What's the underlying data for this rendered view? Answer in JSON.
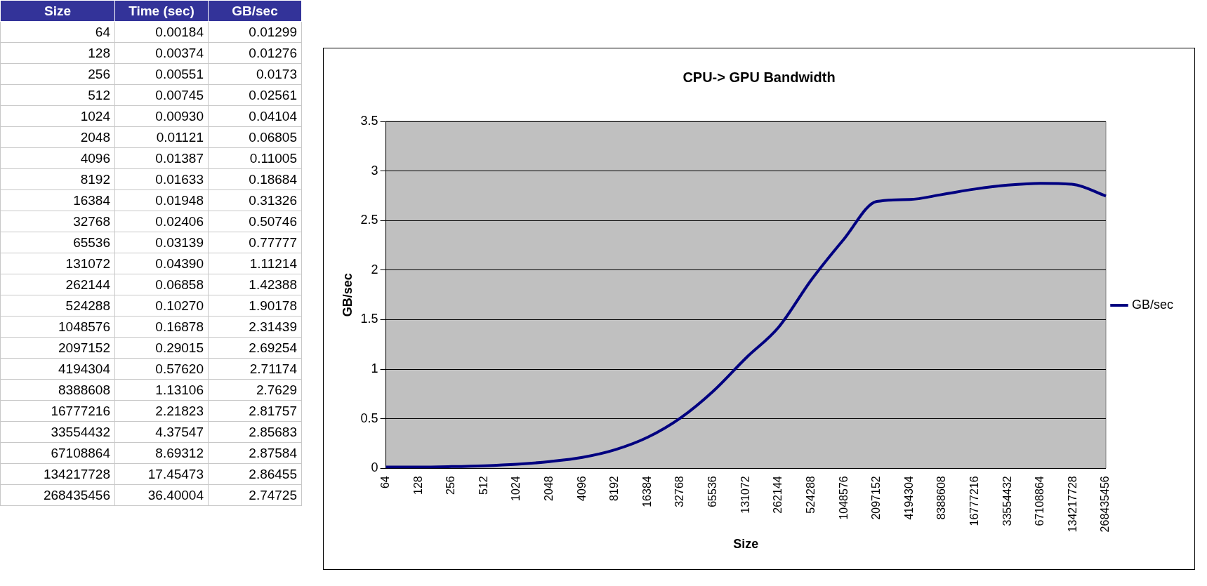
{
  "chart_data": [
    {
      "type": "other",
      "xlabel": "Size",
      "categories": [
        "64",
        "128",
        "256",
        "512",
        "1024",
        "2048",
        "4096",
        "8192",
        "16384",
        "32768",
        "65536",
        "131072",
        "262144",
        "524288",
        "1048576",
        "2097152",
        "4194304",
        "8388608",
        "16777216",
        "33554432",
        "67108864",
        "134217728",
        "268435456"
      ],
      "series": [
        {
          "name": "Time (sec)",
          "values": [
            0.00184,
            0.00374,
            0.00551,
            0.00745,
            0.0093,
            0.01121,
            0.01387,
            0.01633,
            0.01948,
            0.02406,
            0.03139,
            0.0439,
            0.06858,
            0.1027,
            0.16878,
            0.29015,
            0.5762,
            1.13106,
            2.21823,
            4.37547,
            8.69312,
            17.45473,
            36.40004
          ],
          "value_labels": [
            "0.00184",
            "0.00374",
            "0.00551",
            "0.00745",
            "0.00930",
            "0.01121",
            "0.01387",
            "0.01633",
            "0.01948",
            "0.02406",
            "0.03139",
            "0.04390",
            "0.06858",
            "0.10270",
            "0.16878",
            "0.29015",
            "0.57620",
            "1.13106",
            "2.21823",
            "4.37547",
            "8.69312",
            "17.45473",
            "36.40004"
          ]
        },
        {
          "name": "GB/sec",
          "values": [
            0.01299,
            0.01276,
            0.0173,
            0.02561,
            0.04104,
            0.06805,
            0.11005,
            0.18684,
            0.31326,
            0.50746,
            0.77777,
            1.11214,
            1.42388,
            1.90178,
            2.31439,
            2.69254,
            2.71174,
            2.7629,
            2.81757,
            2.85683,
            2.87584,
            2.86455,
            2.74725
          ],
          "value_labels": [
            "0.01299",
            "0.01276",
            "0.0173",
            "0.02561",
            "0.04104",
            "0.06805",
            "0.11005",
            "0.18684",
            "0.31326",
            "0.50746",
            "0.77777",
            "1.11214",
            "1.42388",
            "1.90178",
            "2.31439",
            "2.69254",
            "2.71174",
            "2.7629",
            "2.81757",
            "2.85683",
            "2.87584",
            "2.86455",
            "2.74725"
          ]
        }
      ]
    },
    {
      "type": "line",
      "title": "CPU-> GPU Bandwidth",
      "xlabel": "Size",
      "ylabel": "GB/sec",
      "categories": [
        "64",
        "128",
        "256",
        "512",
        "1024",
        "2048",
        "4096",
        "8192",
        "16384",
        "32768",
        "65536",
        "131072",
        "262144",
        "524288",
        "1048576",
        "2097152",
        "4194304",
        "8388608",
        "16777216",
        "33554432",
        "67108864",
        "134217728",
        "268435456"
      ],
      "series": [
        {
          "name": "GB/sec",
          "color": "#000080",
          "values": [
            0.01299,
            0.01276,
            0.0173,
            0.02561,
            0.04104,
            0.06805,
            0.11005,
            0.18684,
            0.31326,
            0.50746,
            0.77777,
            1.11214,
            1.42388,
            1.90178,
            2.31439,
            2.69254,
            2.71174,
            2.7629,
            2.81757,
            2.85683,
            2.87584,
            2.86455,
            2.74725
          ]
        }
      ],
      "ylim": [
        0,
        3.5
      ],
      "yticks": [
        0,
        0.5,
        1,
        1.5,
        2,
        2.5,
        3,
        3.5
      ],
      "grid": "y",
      "legend": "right",
      "marker": "none"
    }
  ]
}
